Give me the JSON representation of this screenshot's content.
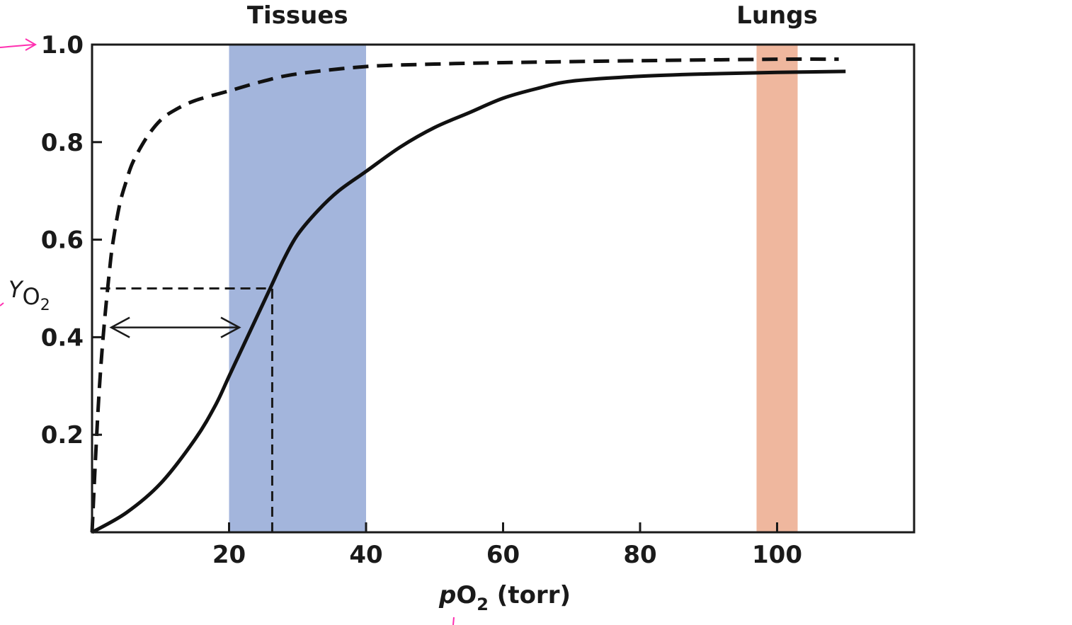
{
  "chart_data": {
    "type": "line",
    "title": "",
    "xlabel": {
      "italic": "p",
      "base": "O",
      "sub": "2",
      "rest": " (torr)"
    },
    "ylabel": {
      "italic": "Y",
      "base": "O",
      "sub": "2"
    },
    "xlim": [
      0,
      120
    ],
    "ylim": [
      0,
      1.0
    ],
    "x_ticks": [
      {
        "value": 20,
        "label": "20"
      },
      {
        "value": 40,
        "label": "40"
      },
      {
        "value": 60,
        "label": "60"
      },
      {
        "value": 80,
        "label": "80"
      },
      {
        "value": 100,
        "label": "100"
      }
    ],
    "y_ticks": [
      {
        "value": 0.2,
        "label": "0.2"
      },
      {
        "value": 0.4,
        "label": "0.4"
      },
      {
        "value": 0.6,
        "label": "0.6"
      },
      {
        "value": 0.8,
        "label": "0.8"
      },
      {
        "value": 1.0,
        "label": "1.0"
      }
    ],
    "regions": [
      {
        "label": "Tissues",
        "x_start": 20,
        "x_end": 40,
        "color": "#a3b5dc"
      },
      {
        "label": "Lungs",
        "x_start": 97,
        "x_end": 103,
        "color": "#efb79e"
      }
    ],
    "series": [
      {
        "style": "dashed",
        "color": "#111111",
        "points": [
          [
            0,
            0
          ],
          [
            0.5,
            0.15
          ],
          [
            1,
            0.28
          ],
          [
            1.5,
            0.38
          ],
          [
            2,
            0.46
          ],
          [
            2.5,
            0.53
          ],
          [
            3,
            0.59
          ],
          [
            4,
            0.67
          ],
          [
            5,
            0.72
          ],
          [
            6,
            0.76
          ],
          [
            8,
            0.81
          ],
          [
            10,
            0.845
          ],
          [
            12,
            0.865
          ],
          [
            15,
            0.885
          ],
          [
            20,
            0.905
          ],
          [
            25,
            0.925
          ],
          [
            30,
            0.94
          ],
          [
            40,
            0.955
          ],
          [
            50,
            0.96
          ],
          [
            60,
            0.963
          ],
          [
            80,
            0.967
          ],
          [
            100,
            0.97
          ],
          [
            109,
            0.97
          ]
        ]
      },
      {
        "style": "solid",
        "color": "#111111",
        "points": [
          [
            0,
            0
          ],
          [
            5,
            0.04
          ],
          [
            10,
            0.1
          ],
          [
            15,
            0.19
          ],
          [
            18,
            0.26
          ],
          [
            20,
            0.32
          ],
          [
            22,
            0.38
          ],
          [
            24,
            0.44
          ],
          [
            26,
            0.5
          ],
          [
            28,
            0.56
          ],
          [
            30,
            0.61
          ],
          [
            33,
            0.66
          ],
          [
            36,
            0.7
          ],
          [
            40,
            0.74
          ],
          [
            45,
            0.79
          ],
          [
            50,
            0.83
          ],
          [
            55,
            0.86
          ],
          [
            60,
            0.89
          ],
          [
            65,
            0.91
          ],
          [
            70,
            0.925
          ],
          [
            80,
            0.935
          ],
          [
            90,
            0.94
          ],
          [
            100,
            0.943
          ],
          [
            110,
            0.945
          ]
        ]
      }
    ],
    "p50_guides": [
      {
        "y": 0.5,
        "x_from": 1.2,
        "x_to": 26.3,
        "orientation": "horizontal"
      },
      {
        "x": 26.3,
        "y_from": 0,
        "y_to": 0.5,
        "orientation": "vertical"
      }
    ],
    "double_arrow": {
      "y": 0.42,
      "x_from": 2.8,
      "x_to": 21.5
    },
    "annotation_color": "#ff2fb0"
  }
}
